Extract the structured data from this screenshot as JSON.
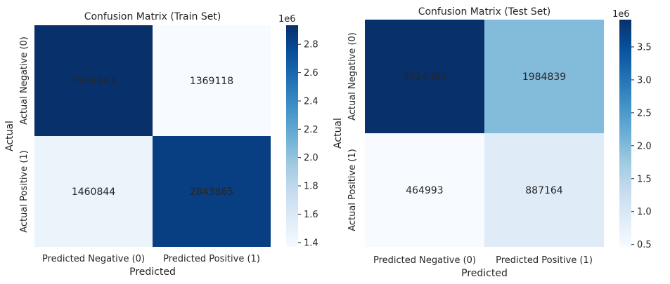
{
  "chart_data": [
    {
      "type": "heatmap",
      "title": "Confusion Matrix (Train Set)",
      "xlabel": "Predicted",
      "ylabel": "Actual",
      "x_categories": [
        "Predicted Negative (0)",
        "Predicted Positive (1)"
      ],
      "y_categories": [
        "Actual Negative (0)",
        "Actual Positive (1)"
      ],
      "values": [
        [
          2934963,
          1369118
        ],
        [
          1460844,
          2843865
        ]
      ],
      "colormap": "Blues",
      "colorbar": {
        "min": 1369118,
        "max": 2934963,
        "ticks": [
          1.4,
          1.6,
          1.8,
          2.0,
          2.2,
          2.4,
          2.6,
          2.8
        ],
        "tick_labels": [
          "1.4",
          "1.6",
          "1.8",
          "2.0",
          "2.2",
          "2.4",
          "2.6",
          "2.8"
        ],
        "multiplier": "1e6"
      }
    },
    {
      "type": "heatmap",
      "title": "Confusion Matrix (Test Set)",
      "xlabel": "Predicted",
      "ylabel": "Actual",
      "x_categories": [
        "Predicted Negative (0)",
        "Predicted Positive (1)"
      ],
      "y_categories": [
        "Actual Negative (0)",
        "Actual Positive (1)"
      ],
      "values": [
        [
          3914089,
          1984839
        ],
        [
          464993,
          887164
        ]
      ],
      "colormap": "Blues",
      "colorbar": {
        "min": 464993,
        "max": 3914089,
        "ticks": [
          0.5,
          1.0,
          1.5,
          2.0,
          2.5,
          3.0,
          3.5
        ],
        "tick_labels": [
          "0.5",
          "1.0",
          "1.5",
          "2.0",
          "2.5",
          "3.0",
          "3.5"
        ],
        "multiplier": "1e6"
      }
    }
  ]
}
